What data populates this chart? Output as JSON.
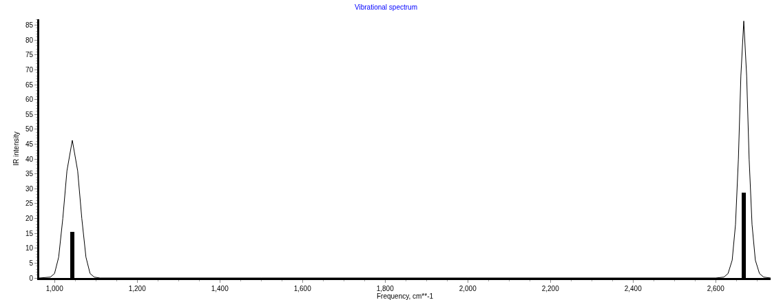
{
  "chart_data": {
    "type": "line",
    "title": "Vibrational spectrum",
    "xlabel": "Frequency, cm**-1",
    "ylabel": "IR intensity",
    "series": [
      {
        "color": "#000000",
        "x": [
          963,
          990,
          1000,
          1010,
          1020,
          1030,
          1043,
          1056,
          1066,
          1076,
          1086,
          1096,
          1110,
          1500,
          2000,
          2600,
          2620,
          2630,
          2640,
          2648,
          2655,
          2661,
          2668,
          2675,
          2681,
          2688,
          2696,
          2706,
          2716,
          2733
        ],
        "values": [
          0,
          0.3,
          1.5,
          7,
          20,
          36,
          46.3,
          36,
          20,
          7,
          1.5,
          0.3,
          0,
          0,
          0,
          0,
          0.3,
          1.5,
          6,
          18,
          40,
          68,
          86.4,
          68,
          40,
          18,
          6,
          1.5,
          0.3,
          0
        ]
      },
      {
        "type": "bar",
        "color": "#000000",
        "x": [
          1043,
          2668
        ],
        "values": [
          15.5,
          28.8
        ]
      }
    ],
    "xlim": [
      963,
      2733
    ],
    "ylim": [
      0,
      87
    ],
    "xticks": [
      {
        "value": 1000,
        "label": "1,000"
      },
      {
        "value": 1200,
        "label": "1,200"
      },
      {
        "value": 1400,
        "label": "1,400"
      },
      {
        "value": 1600,
        "label": "1,600"
      },
      {
        "value": 1800,
        "label": "1,800"
      },
      {
        "value": 2000,
        "label": "2,000"
      },
      {
        "value": 2200,
        "label": "2,200"
      },
      {
        "value": 2400,
        "label": "2,400"
      },
      {
        "value": 2600,
        "label": "2,600"
      }
    ],
    "yticks": [
      0,
      5,
      10,
      15,
      20,
      25,
      30,
      35,
      40,
      45,
      50,
      55,
      60,
      65,
      70,
      75,
      80,
      85
    ],
    "grid": false,
    "marker": "none",
    "line_style": "solid"
  }
}
